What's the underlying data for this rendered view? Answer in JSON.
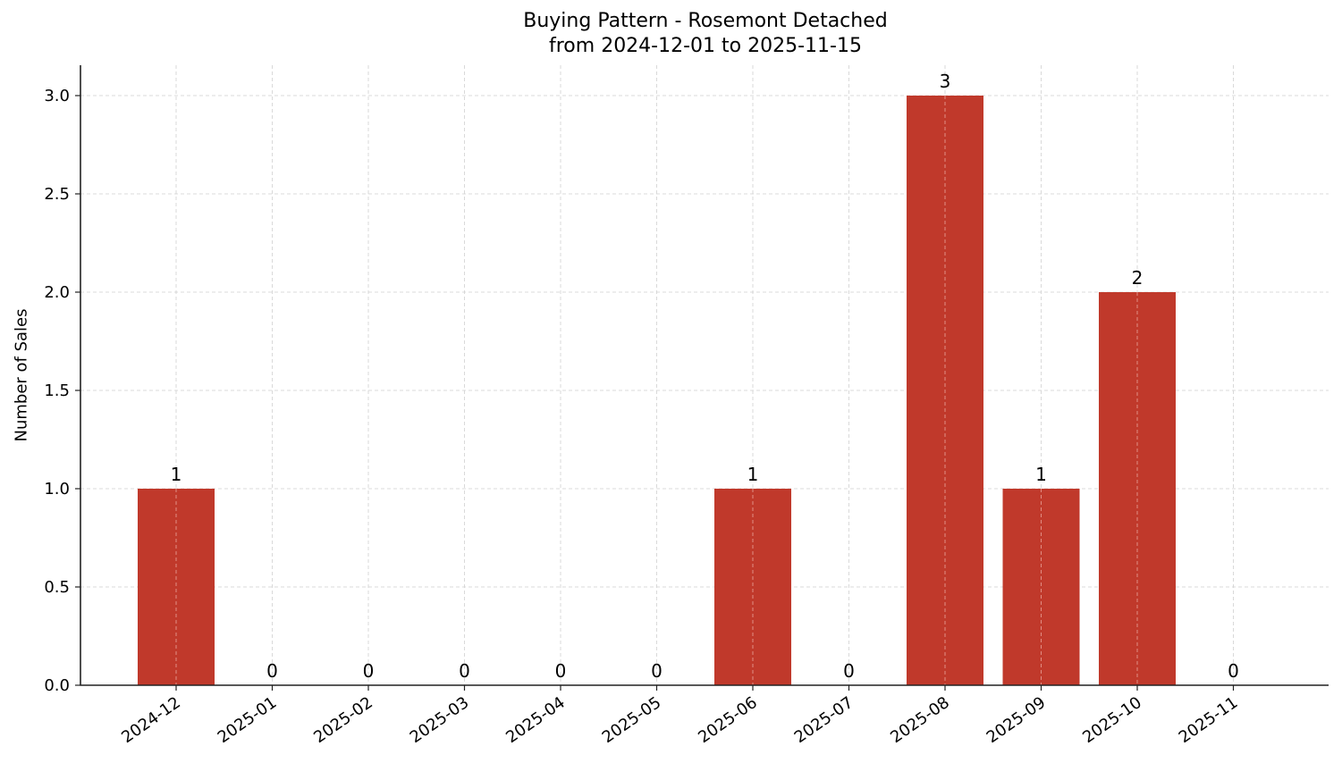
{
  "chart_data": {
    "type": "bar",
    "title": "Buying Pattern - Rosemont Detached",
    "subtitle": "from 2024-12-01 to 2025-11-15",
    "xlabel": "",
    "ylabel": "Number of Sales",
    "categories": [
      "2024-12",
      "2025-01",
      "2025-02",
      "2025-03",
      "2025-04",
      "2025-05",
      "2025-06",
      "2025-07",
      "2025-08",
      "2025-09",
      "2025-10",
      "2025-11"
    ],
    "values": [
      1,
      0,
      0,
      0,
      0,
      0,
      1,
      0,
      3,
      1,
      2,
      0
    ],
    "data_labels": [
      "1",
      "0",
      "0",
      "0",
      "0",
      "0",
      "1",
      "0",
      "3",
      "1",
      "2",
      "0"
    ],
    "ylim": [
      0,
      3.15
    ],
    "yticks": [
      0.0,
      0.5,
      1.0,
      1.5,
      2.0,
      2.5,
      3.0
    ],
    "ytick_labels": [
      "0.0",
      "0.5",
      "1.0",
      "1.5",
      "2.0",
      "2.5",
      "3.0"
    ],
    "grid": true,
    "grid_style": "dashed",
    "legend": null,
    "bar_color": "#c0392b",
    "xtick_rotation": 35
  }
}
